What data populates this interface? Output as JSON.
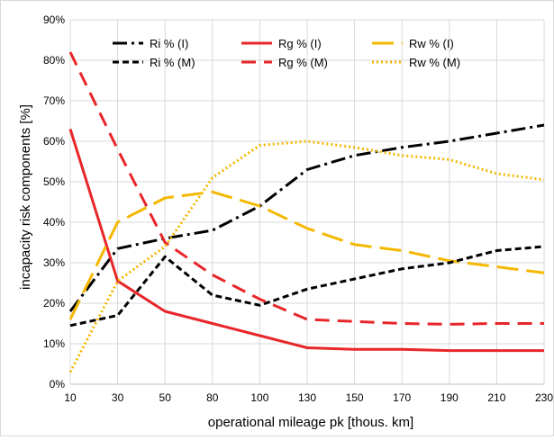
{
  "chart_data": {
    "type": "line",
    "title": "",
    "xlabel": "operational mileage pk [thous.  km]",
    "ylabel": "incapacity risk components [%]",
    "categories": [
      "10",
      "30",
      "50",
      "80",
      "100",
      "130",
      "150",
      "170",
      "190",
      "210",
      "230"
    ],
    "y_ticks": [
      "0%",
      "10%",
      "20%",
      "30%",
      "40%",
      "50%",
      "60%",
      "70%",
      "80%",
      "90%"
    ],
    "ylim": [
      0,
      90
    ],
    "grid": true,
    "legend_position": "top",
    "series": [
      {
        "name": "Ri % (I)",
        "color": "#000000",
        "dash": "dashdot",
        "values": [
          18,
          33.5,
          36,
          38,
          44,
          53,
          56.5,
          58.5,
          60,
          62,
          64
        ]
      },
      {
        "name": "Rg % (I)",
        "color": "#e8262a",
        "dash": "solid",
        "values": [
          63,
          25.5,
          18,
          15,
          12,
          9,
          8.6,
          8.6,
          8.3,
          8.3,
          8.3
        ]
      },
      {
        "name": "Rw % (I)",
        "color": "#f4b800",
        "dash": "longdash",
        "values": [
          16,
          40,
          46,
          47.5,
          44,
          38.5,
          34.5,
          33,
          30.5,
          29,
          27.5
        ]
      },
      {
        "name": "Ri % (M)",
        "color": "#000000",
        "dash": "dash",
        "values": [
          14.5,
          17,
          31.5,
          22,
          19.5,
          23.5,
          26,
          28.5,
          30,
          33,
          34
        ]
      },
      {
        "name": "Rg % (M)",
        "color": "#e8262a",
        "dash": "bigdash",
        "values": [
          82,
          58,
          35,
          27,
          21,
          16,
          15.5,
          15,
          14.8,
          15,
          15
        ]
      },
      {
        "name": "Rw % (M)",
        "color": "#f4b800",
        "dash": "dot",
        "values": [
          3,
          25.5,
          34,
          51,
          59,
          60,
          58.5,
          56.5,
          55.5,
          52,
          50.5
        ]
      }
    ]
  }
}
